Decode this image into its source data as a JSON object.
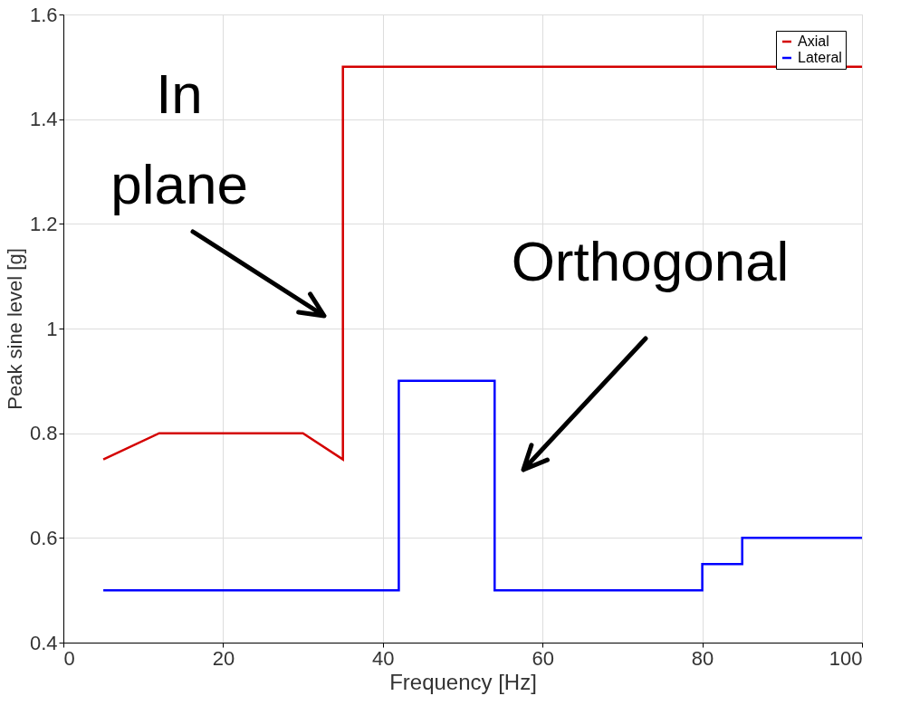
{
  "chart_data": {
    "type": "line",
    "xlabel": "Frequency [Hz]",
    "ylabel": "Peak sine level [g]",
    "xlim": [
      0,
      100
    ],
    "ylim": [
      0.4,
      1.6
    ],
    "xticks": [
      0,
      20,
      40,
      60,
      80,
      100
    ],
    "yticks": [
      0.4,
      0.6,
      0.8,
      {
        "value": 1,
        "label": "1"
      },
      1.2,
      1.4,
      1.6
    ],
    "grid": true,
    "legend": "top right",
    "line_style": "solid",
    "marker": "none",
    "series": [
      {
        "name": "Axial",
        "color": "#d40000",
        "x": [
          5,
          12,
          30,
          35,
          35,
          100
        ],
        "values": [
          0.75,
          0.8,
          0.8,
          0.75,
          1.5,
          1.5
        ]
      },
      {
        "name": "Lateral",
        "color": "#0000ff",
        "x": [
          5,
          42,
          42,
          54,
          54,
          80,
          80,
          85,
          85,
          100
        ],
        "values": [
          0.5,
          0.5,
          0.9,
          0.9,
          0.5,
          0.5,
          0.55,
          0.55,
          0.6,
          0.6
        ]
      }
    ],
    "annotations": [
      "In plane",
      "Orthogonal"
    ]
  }
}
